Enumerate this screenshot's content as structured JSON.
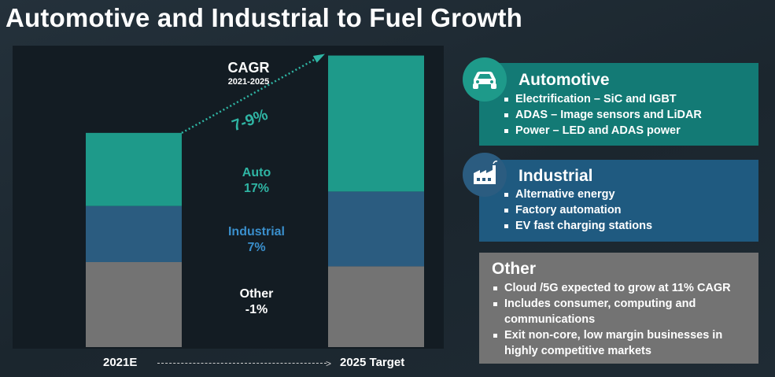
{
  "title": "Automotive and Industrial to Fuel Growth",
  "colors": {
    "other": "#737373",
    "industrial": "#2b5c80",
    "auto": "#1e9a8a",
    "cagr_teal": "#2fb5a4",
    "auto_card": "#137a75",
    "industrial_card": "#1f5a80",
    "other_card": "#737373"
  },
  "chart_data": {
    "type": "bar",
    "stacked": true,
    "categories": [
      "2021E",
      "2025 Target"
    ],
    "series": [
      {
        "name": "Other",
        "values": [
          100,
          95
        ]
      },
      {
        "name": "Industrial",
        "values": [
          66,
          88
        ]
      },
      {
        "name": "Auto",
        "values": [
          86,
          160
        ]
      }
    ],
    "ylim": [
      0,
      350
    ],
    "segment_labels": [
      {
        "name": "Other",
        "cagr": "-1%"
      },
      {
        "name": "Industrial",
        "cagr": "7%"
      },
      {
        "name": "Auto",
        "cagr": "17%"
      }
    ],
    "cagr": {
      "title": "CAGR",
      "period": "2021-2025",
      "value": "7-9%"
    },
    "x_axis": {
      "start": "2021E",
      "end": "2025 Target"
    }
  },
  "cards": {
    "automotive": {
      "title": "Automotive",
      "icon": "car-icon",
      "items": [
        "Electrification – SiC and IGBT",
        "ADAS – Image sensors and LiDAR",
        "Power – LED and ADAS power"
      ]
    },
    "industrial": {
      "title": "Industrial",
      "icon": "factory-icon",
      "items": [
        "Alternative energy",
        "Factory automation",
        "EV fast charging stations"
      ]
    },
    "other": {
      "title": "Other",
      "items": [
        "Cloud /5G expected to grow at 11% CAGR",
        "Includes consumer, computing and communications",
        "Exit non-core, low margin businesses in highly competitive markets"
      ]
    }
  }
}
